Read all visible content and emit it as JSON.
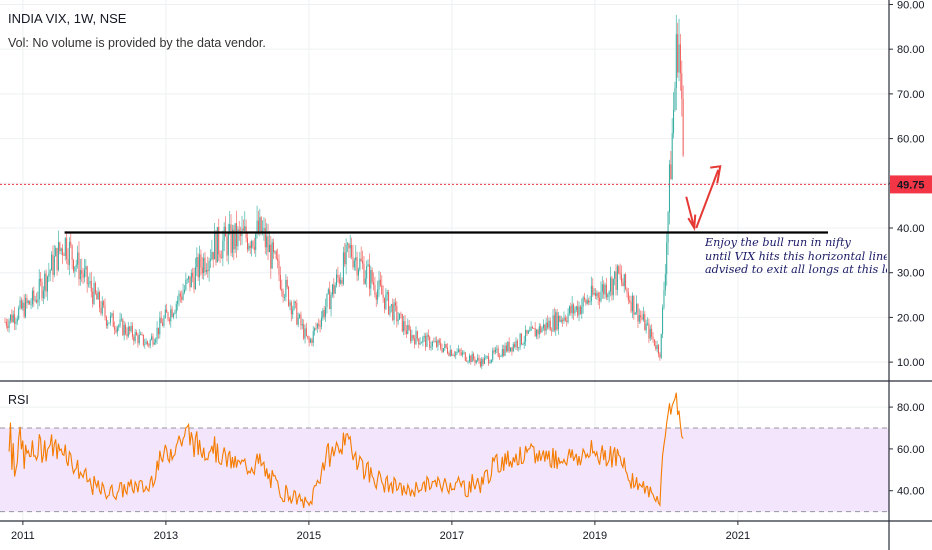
{
  "header": {
    "title": "INDIA VIX, 1W, NSE",
    "volume_note": "Vol: No volume is provided by the data vendor."
  },
  "rsi_panel": {
    "label": "RSI",
    "upper_band": 70,
    "lower_band": 30,
    "band_color": "#f3e5fb",
    "line_color": "#f57c00"
  },
  "annotation": {
    "lines": [
      "Enjoy the bull run in nifty",
      "until VIX hits this horizontal line..",
      "advised to exit all longs at this lev"
    ]
  },
  "colors": {
    "up": "#26a69a",
    "down": "#ef5350",
    "price_line": "#f23645",
    "support_line": "#000000",
    "arrow": "#e53935"
  },
  "chart_data": {
    "type": "candlestick",
    "title": "INDIA VIX, 1W, NSE",
    "price_axis": {
      "ticks": [
        "90.00",
        "80.00",
        "70.00",
        "60.00",
        "50.00",
        "40.00",
        "30.00",
        "20.00",
        "10.00"
      ],
      "range": [
        6,
        91
      ]
    },
    "time_axis": {
      "ticks": [
        "2011",
        "2013",
        "2015",
        "2017",
        "2019",
        "2021"
      ]
    },
    "last_price": {
      "value": 49.75,
      "label": "49.75"
    },
    "support_level": 39,
    "series_summary": [
      {
        "date": "2010-10",
        "value": 19
      },
      {
        "date": "2011-03",
        "value": 24
      },
      {
        "date": "2011-08",
        "value": 37
      },
      {
        "date": "2012-03",
        "value": 20
      },
      {
        "date": "2012-10",
        "value": 14
      },
      {
        "date": "2013-09",
        "value": 36
      },
      {
        "date": "2014-05",
        "value": 39
      },
      {
        "date": "2015-01",
        "value": 14
      },
      {
        "date": "2015-08",
        "value": 35
      },
      {
        "date": "2016-06",
        "value": 16
      },
      {
        "date": "2017-06",
        "value": 10
      },
      {
        "date": "2018-10",
        "value": 22
      },
      {
        "date": "2019-05",
        "value": 29
      },
      {
        "date": "2019-12",
        "value": 12
      },
      {
        "date": "2020-03",
        "value": 86
      },
      {
        "date": "2020-04",
        "value": 49.75
      }
    ],
    "rsi": {
      "ticks": [
        "80.00",
        "60.00",
        "40.00"
      ],
      "range": [
        26,
        92
      ],
      "upper": 70,
      "lower": 30,
      "last_value": 65
    }
  }
}
